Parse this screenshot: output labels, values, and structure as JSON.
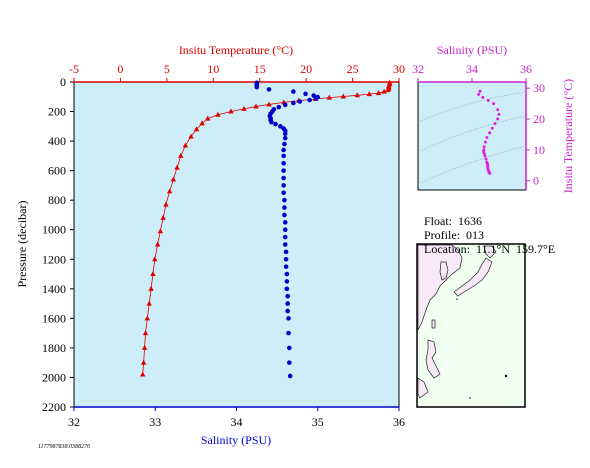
{
  "colors": {
    "plot_bg": "#cdeef8",
    "temperature": "#dd0000",
    "salinity": "#0000cc",
    "inset_ts": "#dd22dd",
    "map_land": "#f8e8f8",
    "map_ocean": "#f0fff0"
  },
  "info": {
    "float_label": "Float:",
    "float_value": "1636",
    "profile_label": "Profile:",
    "profile_value": "013",
    "location_label": "Location:",
    "location_value": "11.1°N  159.7°E"
  },
  "footer_id": "1177987838.0388276",
  "chart_data": [
    {
      "type": "scatter",
      "xlabel_bottom": "Salinity (PSU)",
      "xlabel_top": "Insitu Temperature (°C)",
      "ylabel": "Pressure (decibar)",
      "salinity_axis": {
        "range": [
          32,
          36
        ],
        "ticks": [
          "32",
          "33",
          "34",
          "35",
          "36"
        ]
      },
      "temperature_axis": {
        "range": [
          -5,
          30
        ],
        "ticks": [
          "-5",
          "0",
          "5",
          "10",
          "15",
          "20",
          "25",
          "30"
        ]
      },
      "pressure_axis": {
        "range": [
          0,
          2200
        ],
        "reversed": true,
        "ticks": [
          "0",
          "200",
          "400",
          "600",
          "800",
          "1000",
          "1200",
          "1400",
          "1600",
          "1800",
          "2000",
          "2200"
        ]
      },
      "series": [
        {
          "variable": "temperature",
          "marker": "triangle",
          "points": [
            [
              29.0,
              5
            ],
            [
              29.0,
              15
            ],
            [
              28.9,
              25
            ],
            [
              28.9,
              35
            ],
            [
              28.9,
              45
            ],
            [
              28.8,
              55
            ],
            [
              28.4,
              65
            ],
            [
              27.8,
              75
            ],
            [
              26.8,
              82
            ],
            [
              25.5,
              90
            ],
            [
              24.0,
              98
            ],
            [
              22.5,
              106
            ],
            [
              21.0,
              115
            ],
            [
              19.2,
              126
            ],
            [
              17.6,
              138
            ],
            [
              16.0,
              152
            ],
            [
              14.6,
              166
            ],
            [
              13.3,
              182
            ],
            [
              11.9,
              200
            ],
            [
              10.5,
              222
            ],
            [
              9.4,
              248
            ],
            [
              8.8,
              280
            ],
            [
              8.2,
              320
            ],
            [
              7.6,
              370
            ],
            [
              7.0,
              430
            ],
            [
              6.5,
              500
            ],
            [
              6.1,
              580
            ],
            [
              5.7,
              660
            ],
            [
              5.3,
              740
            ],
            [
              4.9,
              830
            ],
            [
              4.6,
              920
            ],
            [
              4.3,
              1010
            ],
            [
              4.0,
              1100
            ],
            [
              3.7,
              1200
            ],
            [
              3.5,
              1300
            ],
            [
              3.3,
              1400
            ],
            [
              3.1,
              1500
            ],
            [
              2.9,
              1600
            ],
            [
              2.7,
              1700
            ],
            [
              2.6,
              1800
            ],
            [
              2.5,
              1900
            ],
            [
              2.4,
              1980
            ]
          ]
        },
        {
          "variable": "salinity",
          "marker": "circle",
          "points": [
            [
              34.25,
              5
            ],
            [
              34.25,
              15
            ],
            [
              34.25,
              25
            ],
            [
              34.25,
              35
            ],
            [
              34.4,
              50
            ],
            [
              34.7,
              65
            ],
            [
              34.85,
              80
            ],
            [
              34.95,
              92
            ],
            [
              35.0,
              102
            ],
            [
              34.98,
              112
            ],
            [
              34.9,
              122
            ],
            [
              34.78,
              132
            ],
            [
              34.7,
              142
            ],
            [
              34.6,
              155
            ],
            [
              34.52,
              170
            ],
            [
              34.46,
              185
            ],
            [
              34.44,
              200
            ],
            [
              34.42,
              215
            ],
            [
              34.41,
              230
            ],
            [
              34.42,
              245
            ],
            [
              34.42,
              258
            ],
            [
              34.43,
              272
            ],
            [
              34.48,
              285
            ],
            [
              34.54,
              300
            ],
            [
              34.58,
              315
            ],
            [
              34.6,
              330
            ],
            [
              34.6,
              350
            ],
            [
              34.6,
              380
            ],
            [
              34.59,
              420
            ],
            [
              34.58,
              460
            ],
            [
              34.58,
              500
            ],
            [
              34.58,
              550
            ],
            [
              34.58,
              600
            ],
            [
              34.58,
              650
            ],
            [
              34.58,
              700
            ],
            [
              34.58,
              750
            ],
            [
              34.59,
              800
            ],
            [
              34.59,
              850
            ],
            [
              34.59,
              900
            ],
            [
              34.6,
              950
            ],
            [
              34.6,
              1000
            ],
            [
              34.6,
              1050
            ],
            [
              34.6,
              1100
            ],
            [
              34.61,
              1150
            ],
            [
              34.61,
              1200
            ],
            [
              34.61,
              1250
            ],
            [
              34.62,
              1300
            ],
            [
              34.62,
              1350
            ],
            [
              34.62,
              1400
            ],
            [
              34.63,
              1450
            ],
            [
              34.63,
              1500
            ],
            [
              34.63,
              1550
            ],
            [
              34.64,
              1600
            ],
            [
              34.64,
              1700
            ],
            [
              34.65,
              1800
            ],
            [
              34.65,
              1900
            ],
            [
              34.66,
              1990
            ]
          ]
        }
      ]
    },
    {
      "type": "scatter",
      "xlabel": "Salinity (PSU)",
      "ylabel": "Insitu Temperature (°C)",
      "salinity_axis": {
        "range": [
          32,
          36
        ],
        "ticks": [
          "32",
          "34",
          "36"
        ]
      },
      "temperature_axis": {
        "range": [
          -3,
          32
        ],
        "ticks": [
          "0",
          "10",
          "20",
          "30"
        ]
      },
      "grid": "density contours",
      "points": [
        [
          34.3,
          29
        ],
        [
          34.25,
          28
        ],
        [
          34.4,
          27
        ],
        [
          34.6,
          26
        ],
        [
          34.8,
          25
        ],
        [
          34.95,
          23
        ],
        [
          35.0,
          21.5
        ],
        [
          34.95,
          20
        ],
        [
          34.85,
          18.5
        ],
        [
          34.75,
          17
        ],
        [
          34.65,
          15.5
        ],
        [
          34.55,
          14
        ],
        [
          34.5,
          12.5
        ],
        [
          34.45,
          11
        ],
        [
          34.44,
          10
        ],
        [
          34.43,
          9.4
        ],
        [
          34.45,
          8.8
        ],
        [
          34.48,
          8
        ],
        [
          34.52,
          7
        ],
        [
          34.55,
          6
        ],
        [
          34.57,
          5.5
        ],
        [
          34.58,
          5
        ],
        [
          34.58,
          4.5
        ],
        [
          34.59,
          4
        ],
        [
          34.6,
          3.5
        ],
        [
          34.62,
          3
        ],
        [
          34.64,
          2.6
        ],
        [
          34.66,
          2.4
        ]
      ]
    }
  ]
}
